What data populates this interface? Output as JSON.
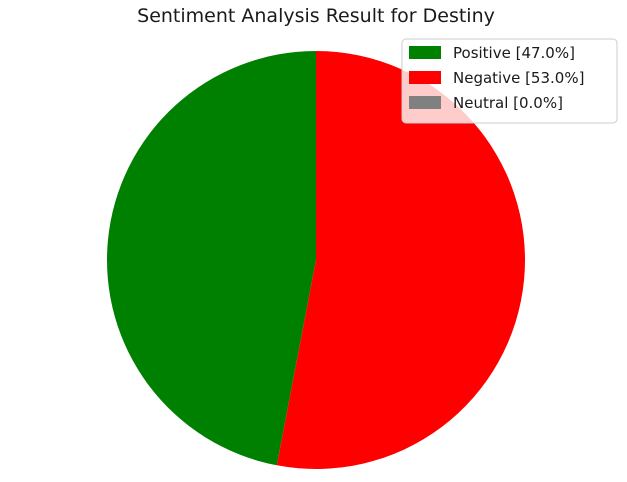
{
  "chart_data": {
    "type": "pie",
    "title": "Sentiment Analysis Result for Destiny",
    "slices": [
      {
        "label": "Positive [47.0%]",
        "value": 47.0,
        "color": "#008000"
      },
      {
        "label": "Negative [53.0%]",
        "value": 53.0,
        "color": "#ff0000"
      },
      {
        "label": "Neutral [0.0%]",
        "value": 0.0,
        "color": "#808080"
      }
    ],
    "start_angle_deg": 90,
    "direction": "counterclockwise",
    "legend_position": "top-right"
  }
}
